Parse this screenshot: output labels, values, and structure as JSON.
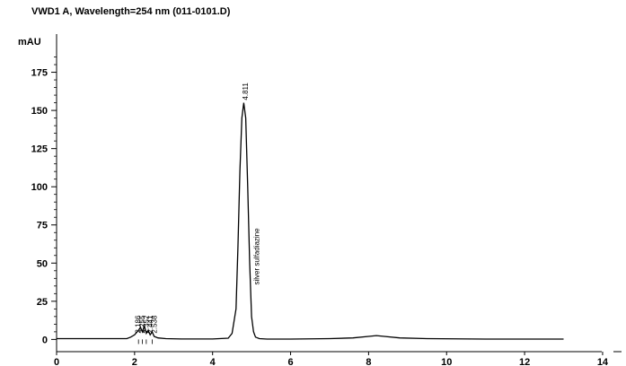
{
  "chart_data": {
    "type": "line",
    "title": "VWD1 A, Wavelength=254 nm (011-0101.D)",
    "ylabel": "mAU",
    "xlabel": "",
    "xlim": [
      0,
      14.6
    ],
    "ylim": [
      -8,
      200
    ],
    "x_ticks": [
      0,
      2,
      4,
      6,
      8,
      10,
      12,
      14
    ],
    "y_ticks": [
      0,
      25,
      50,
      75,
      100,
      125,
      150,
      175
    ],
    "grid": false,
    "series": [
      {
        "values_desc": "chromatogram trace",
        "x": [
          0,
          1.8,
          1.9,
          2.0,
          2.1,
          2.15,
          2.2,
          2.25,
          2.3,
          2.35,
          2.4,
          2.45,
          2.5,
          2.6,
          2.8,
          3.2,
          3.6,
          4.0,
          4.4,
          4.5,
          4.6,
          4.65,
          4.7,
          4.75,
          4.8,
          4.85,
          4.9,
          4.95,
          5.0,
          5.05,
          5.1,
          5.2,
          5.4,
          6.0,
          7.0,
          7.6,
          8.0,
          8.2,
          8.4,
          8.8,
          9.5,
          11.0,
          13.0
        ],
        "y": [
          0.5,
          0.5,
          1.5,
          3,
          6,
          8,
          5,
          9,
          4,
          6,
          3,
          5,
          2,
          1,
          0.5,
          0.3,
          0.3,
          0.3,
          0.8,
          4,
          20,
          60,
          110,
          145,
          155,
          145,
          100,
          50,
          15,
          5,
          1.5,
          0.5,
          0.2,
          0.2,
          0.5,
          1,
          2,
          2.5,
          2,
          1,
          0.5,
          0.2,
          0.2
        ]
      }
    ],
    "peak_labels": [
      {
        "x": 4.811,
        "y": 155,
        "text": "4.811"
      },
      {
        "x": 5.1,
        "y": 34,
        "text": "silver sulfadiazine"
      }
    ],
    "cluster_labels": [
      "2.186",
      "2.255",
      "2.352",
      "2.441",
      "2.538"
    ]
  }
}
